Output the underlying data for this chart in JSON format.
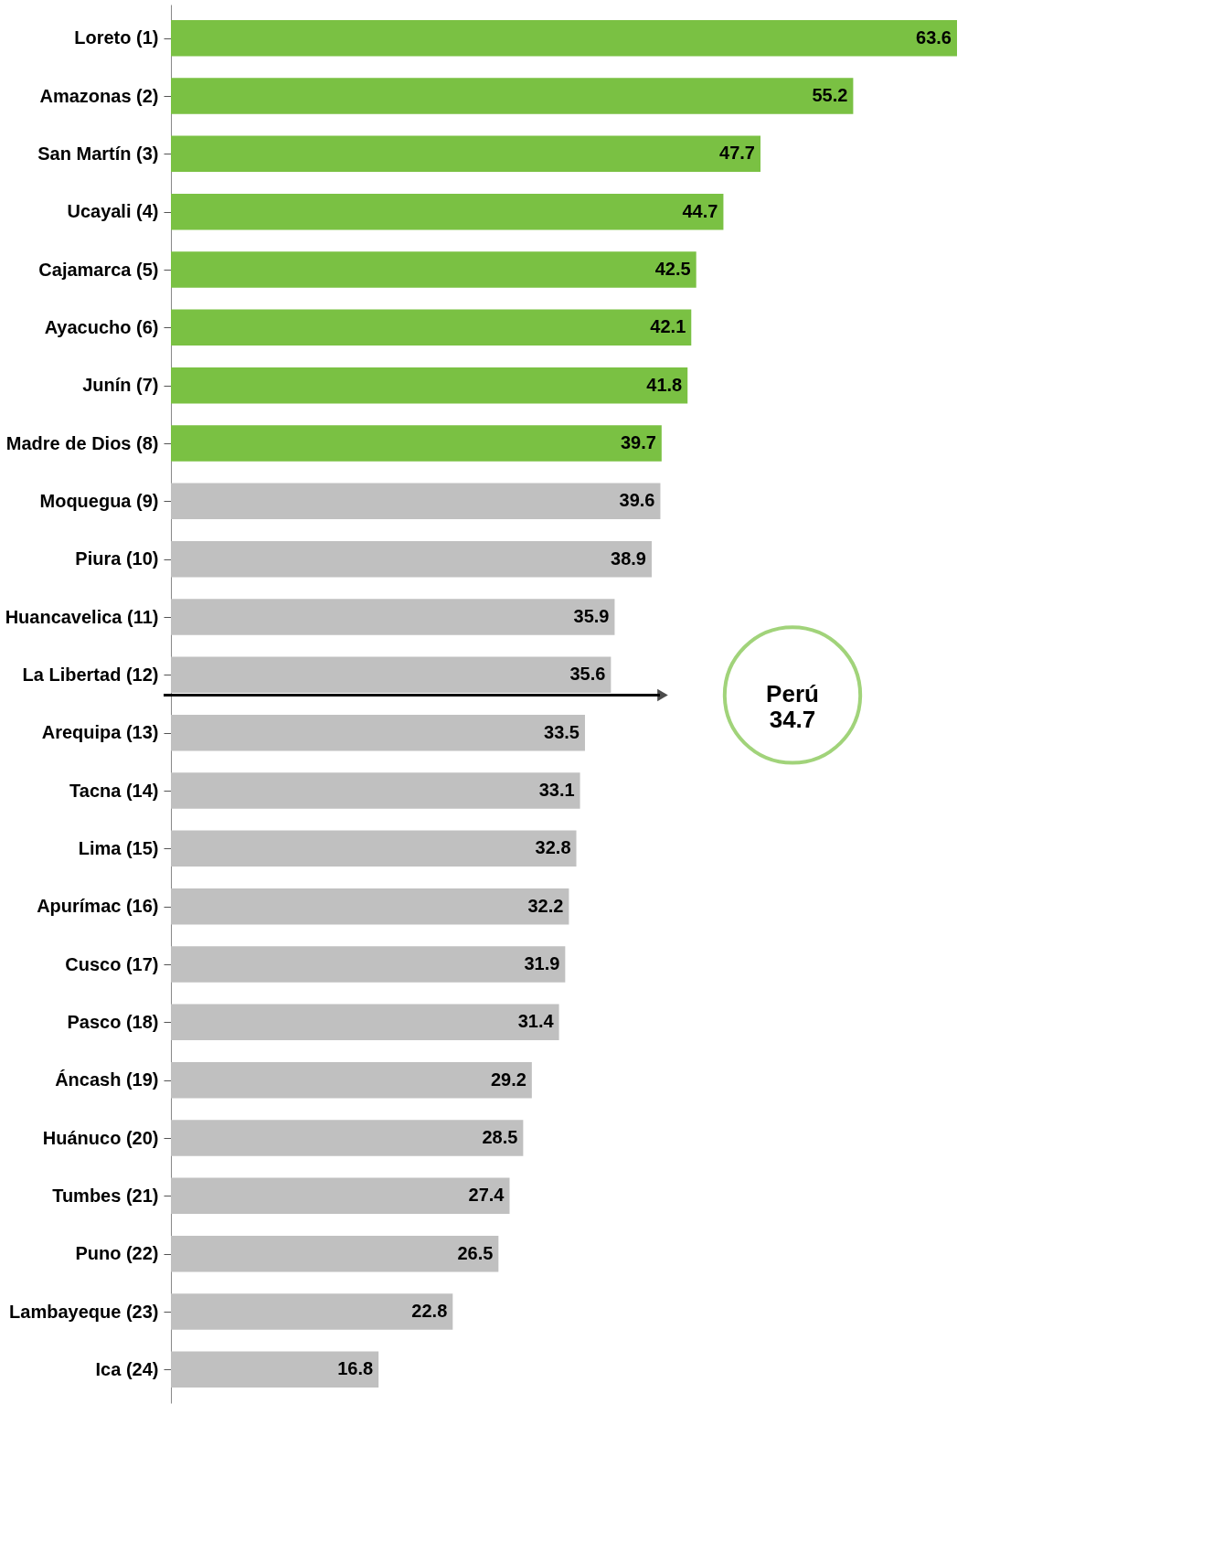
{
  "chart_data": {
    "type": "bar",
    "orientation": "horizontal",
    "data_labels": true,
    "categories": [
      "Loreto (1)",
      "Amazonas (2)",
      "San Martín (3)",
      "Ucayali (4)",
      "Cajamarca (5)",
      "Ayacucho (6)",
      "Junín (7)",
      "Madre de Dios (8)",
      "Moquegua (9)",
      "Piura (10)",
      "Huancavelica (11)",
      "La Libertad (12)",
      "Arequipa (13)",
      "Tacna (14)",
      "Lima (15)",
      "Apurímac (16)",
      "Cusco (17)",
      "Pasco (18)",
      "Áncash (19)",
      "Huánuco (20)",
      "Tumbes (21)",
      "Puno (22)",
      "Lambayeque (23)",
      "Ica (24)"
    ],
    "values": [
      63.6,
      55.2,
      47.7,
      44.7,
      42.5,
      42.1,
      41.8,
      39.7,
      39.6,
      38.9,
      35.9,
      35.6,
      33.5,
      33.1,
      32.8,
      32.2,
      31.9,
      31.4,
      29.2,
      28.5,
      27.4,
      26.5,
      22.8,
      16.8
    ],
    "colors": [
      "#7ac143",
      "#7ac143",
      "#7ac143",
      "#7ac143",
      "#7ac143",
      "#7ac143",
      "#7ac143",
      "#7ac143",
      "#c0c0c0",
      "#c0c0c0",
      "#c0c0c0",
      "#c0c0c0",
      "#c0c0c0",
      "#c0c0c0",
      "#c0c0c0",
      "#c0c0c0",
      "#c0c0c0",
      "#c0c0c0",
      "#c0c0c0",
      "#c0c0c0",
      "#c0c0c0",
      "#c0c0c0",
      "#c0c0c0",
      "#c0c0c0"
    ],
    "annotations": [
      "Perú 34.7"
    ]
  }
}
